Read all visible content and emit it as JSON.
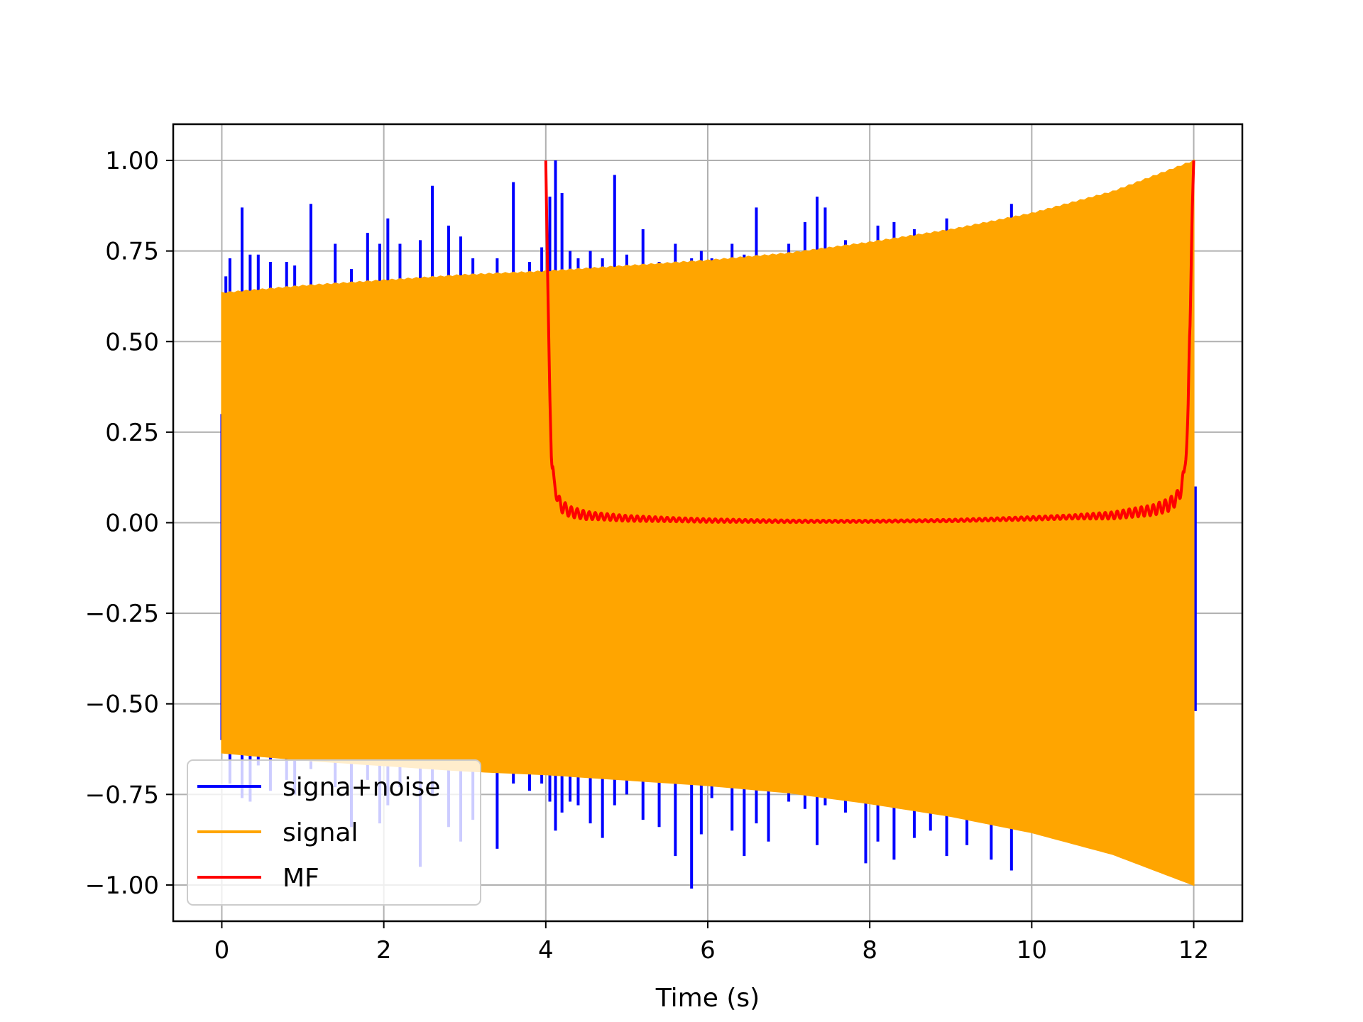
{
  "chart_data": {
    "type": "line",
    "title": "",
    "xlabel": "Time (s)",
    "ylabel": "",
    "xlim": [
      -0.6,
      12.6
    ],
    "ylim": [
      -1.1,
      1.1
    ],
    "xticks": [
      0,
      2,
      4,
      6,
      8,
      10,
      12
    ],
    "xtick_labels": [
      "0",
      "2",
      "4",
      "6",
      "8",
      "10",
      "12"
    ],
    "yticks": [
      1.0,
      0.75,
      0.5,
      0.25,
      0.0,
      -0.25,
      -0.5,
      -0.75,
      -1.0
    ],
    "ytick_labels": [
      "1.00",
      "0.75",
      "0.50",
      "0.25",
      "0.00",
      "−0.25",
      "−0.50",
      "−0.75",
      "−1.00"
    ],
    "grid": true,
    "legend_position": "lower-left",
    "series": [
      {
        "name": "signa+noise",
        "color": "#0000ff",
        "style": "noisy chirp",
        "spike_times": [
          0.05,
          0.1,
          0.25,
          0.35,
          0.45,
          0.6,
          0.8,
          0.9,
          1.1,
          1.4,
          1.6,
          1.8,
          1.95,
          2.05,
          2.2,
          2.45,
          2.6,
          2.8,
          2.95,
          3.1,
          3.4,
          3.6,
          3.8,
          3.95,
          4.05,
          4.12,
          4.2,
          4.3,
          4.4,
          4.55,
          4.7,
          4.85,
          5.0,
          5.2,
          5.4,
          5.6,
          5.8,
          5.92,
          6.05,
          6.3,
          6.45,
          6.6,
          6.75,
          7.0,
          7.2,
          7.35,
          7.45,
          7.7,
          7.95,
          8.1,
          8.3,
          8.55,
          8.75,
          8.95,
          9.2,
          9.5,
          9.75
        ],
        "spike_top": [
          0.68,
          0.73,
          0.87,
          0.74,
          0.74,
          0.72,
          0.72,
          0.71,
          0.88,
          0.77,
          0.7,
          0.8,
          0.77,
          0.84,
          0.77,
          0.78,
          0.93,
          0.82,
          0.79,
          0.73,
          0.73,
          0.94,
          0.72,
          0.76,
          0.9,
          1.0,
          0.91,
          0.75,
          0.73,
          0.75,
          0.73,
          0.96,
          0.74,
          0.81,
          0.72,
          0.77,
          0.73,
          0.75,
          0.73,
          0.77,
          0.74,
          0.87,
          0.72,
          0.77,
          0.83,
          0.9,
          0.87,
          0.78,
          0.76,
          0.82,
          0.83,
          0.81,
          0.78,
          0.84,
          0.8,
          0.82,
          0.88
        ],
        "spike_bottom": [
          -0.59,
          -0.72,
          -0.76,
          -0.77,
          -0.67,
          -0.74,
          -0.71,
          -0.75,
          -0.68,
          -0.73,
          -0.84,
          -0.71,
          -0.83,
          -0.78,
          -0.73,
          -0.95,
          -0.75,
          -0.84,
          -0.88,
          -0.82,
          -0.9,
          -0.72,
          -0.74,
          -0.72,
          -0.77,
          -0.85,
          -0.8,
          -0.77,
          -0.78,
          -0.83,
          -0.87,
          -0.78,
          -0.75,
          -0.82,
          -0.84,
          -0.92,
          -1.01,
          -0.86,
          -0.76,
          -0.85,
          -0.92,
          -0.83,
          -0.88,
          -0.77,
          -0.79,
          -0.89,
          -0.78,
          -0.8,
          -0.94,
          -0.88,
          -0.93,
          -0.87,
          -0.85,
          -0.92,
          -0.89,
          -0.93,
          -0.96
        ]
      },
      {
        "name": "signal",
        "color": "#ffa500",
        "style": "chirp",
        "envelope_x": [
          0,
          1,
          2,
          3,
          4,
          5,
          6,
          7,
          8,
          9,
          10,
          11,
          12
        ],
        "envelope_upper": [
          0.635,
          0.655,
          0.67,
          0.685,
          0.695,
          0.71,
          0.725,
          0.745,
          0.775,
          0.81,
          0.855,
          0.915,
          1.0
        ],
        "envelope_lower": [
          -0.635,
          -0.655,
          -0.67,
          -0.685,
          -0.695,
          -0.71,
          -0.725,
          -0.745,
          -0.775,
          -0.81,
          -0.855,
          -0.915,
          -1.0
        ]
      },
      {
        "name": "MF",
        "color": "#ff0000",
        "style": "line",
        "x": [
          4.0,
          4.02,
          4.05,
          4.07,
          4.1,
          4.12,
          4.15,
          4.2,
          4.3,
          4.5,
          5.0,
          6.0,
          7.0,
          8.0,
          9.0,
          10.0,
          11.0,
          11.5,
          11.7,
          11.8,
          11.88,
          11.93,
          11.96,
          11.98,
          12.0
        ],
        "y": [
          1.0,
          0.72,
          0.35,
          0.17,
          0.11,
          0.1,
          0.06,
          0.045,
          0.03,
          0.02,
          0.012,
          0.006,
          0.004,
          0.004,
          0.006,
          0.012,
          0.02,
          0.035,
          0.05,
          0.07,
          0.12,
          0.3,
          0.6,
          0.85,
          1.0
        ],
        "ripple_amplitude": [
          0.02,
          0.015,
          0.01,
          0.006,
          0.004,
          0.003,
          0.003,
          0.004,
          0.006,
          0.01,
          0.015,
          0.02,
          0.03
        ]
      }
    ]
  }
}
